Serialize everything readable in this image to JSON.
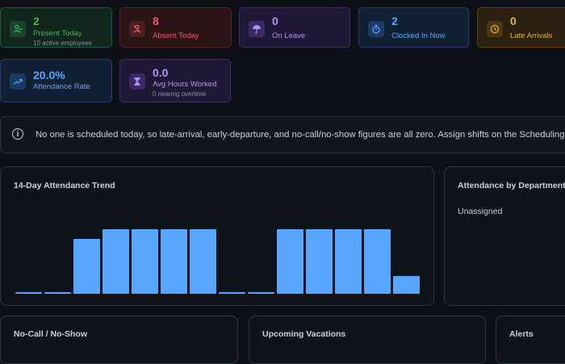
{
  "stats": [
    {
      "value": "2",
      "label": "Present Today",
      "sub": "10 active employees",
      "icon": "user-check-icon",
      "color": "green"
    },
    {
      "value": "8",
      "label": "Absent Today",
      "icon": "user-off-icon",
      "color": "red"
    },
    {
      "value": "0",
      "label": "On Leave",
      "icon": "umbrella-icon",
      "color": "purple"
    },
    {
      "value": "2",
      "label": "Clocked In Now",
      "icon": "stopwatch-icon",
      "color": "blue"
    },
    {
      "value": "0",
      "label": "Late Arrivals",
      "icon": "clock-icon",
      "color": "amber"
    },
    {
      "value": "20.0%",
      "label": "Attendance Rate",
      "icon": "trending-up-icon",
      "color": "blue"
    },
    {
      "value": "0.0",
      "label": "Avg Hours Worked",
      "sub": "0 nearing overtime",
      "icon": "hourglass-icon",
      "color": "purple"
    }
  ],
  "info_banner": {
    "text": "No one is scheduled today, so late-arrival, early-departure, and no-call/no-show figures are all zero. Assign shifts on the Scheduling page"
  },
  "trend": {
    "title": "14-Day Attendance Trend",
    "chart_data": {
      "type": "bar",
      "values": [
        0.3,
        0.3,
        8.5,
        10,
        10,
        10,
        10,
        0.3,
        0.3,
        10,
        10,
        10,
        10,
        2.8
      ],
      "ylim": [
        0,
        10
      ]
    }
  },
  "department": {
    "title": "Attendance by Department",
    "item": "Unassigned"
  },
  "bottom_cards": {
    "nocall": "No-Call / No-Show",
    "vacations": "Upcoming Vacations",
    "alerts": "Alerts"
  }
}
